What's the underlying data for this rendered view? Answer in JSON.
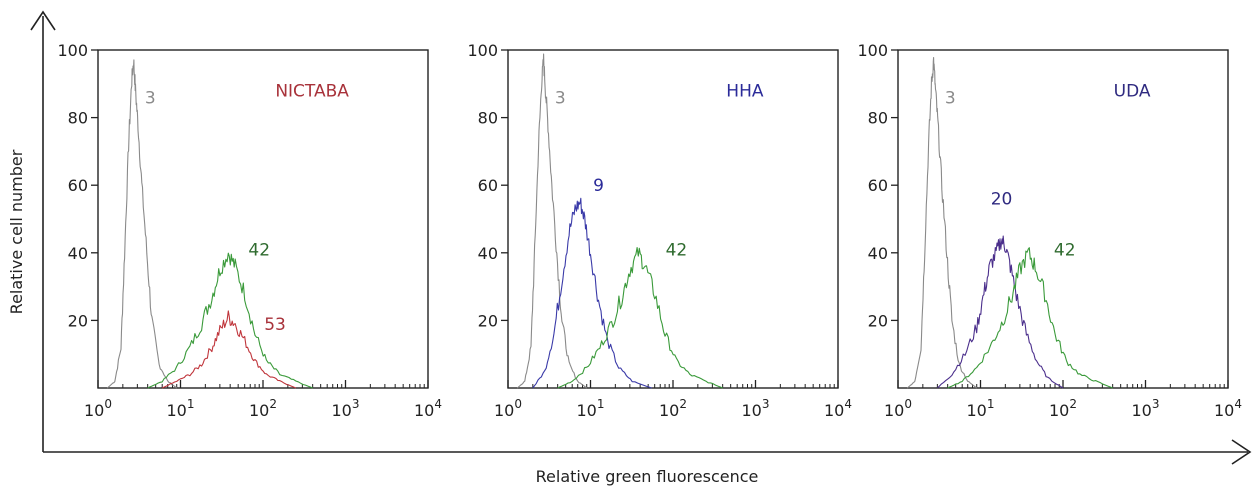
{
  "figure": {
    "ylabel": "Relative cell number",
    "xlabel": "Relative green fluorescence"
  },
  "colors": {
    "gray": "#8a8a8a",
    "green": "#3a9a3a",
    "green_label": "#2f6b2f",
    "red": "#c0363c",
    "red_label": "#a8323a",
    "blue": "#3a3aa8",
    "blue_label": "#2b2b99",
    "purple": "#4b2f8c",
    "purple_label": "#2f2a80"
  },
  "chart_data": [
    {
      "type": "line",
      "title": "NICTABA",
      "x_scale": "log",
      "xlim": [
        1,
        10000
      ],
      "ylim": [
        0,
        100
      ],
      "yticks": [
        "100",
        "80",
        "60",
        "40",
        "20"
      ],
      "xticks": [
        {
          "base": "10",
          "exp": "0"
        },
        {
          "base": "10",
          "exp": "1"
        },
        {
          "base": "10",
          "exp": "2"
        },
        {
          "base": "10",
          "exp": "3"
        },
        {
          "base": "10",
          "exp": "4"
        }
      ],
      "series": [
        {
          "name": "3",
          "color": "gray",
          "points": [
            [
              1.3,
              0
            ],
            [
              1.6,
              2
            ],
            [
              1.9,
              12
            ],
            [
              2.1,
              40
            ],
            [
              2.35,
              72
            ],
            [
              2.55,
              90
            ],
            [
              2.7,
              97
            ],
            [
              2.85,
              88
            ],
            [
              3.05,
              78
            ],
            [
              3.4,
              60
            ],
            [
              3.9,
              40
            ],
            [
              4.5,
              20
            ],
            [
              5.5,
              7
            ],
            [
              7,
              2
            ],
            [
              9,
              0
            ]
          ]
        },
        {
          "name": "42",
          "color": "green",
          "points": [
            [
              4,
              0
            ],
            [
              6,
              2
            ],
            [
              9,
              6
            ],
            [
              13,
              12
            ],
            [
              18,
              19
            ],
            [
              24,
              27
            ],
            [
              30,
              35
            ],
            [
              38,
              40
            ],
            [
              46,
              36
            ],
            [
              60,
              28
            ],
            [
              80,
              16
            ],
            [
              110,
              8
            ],
            [
              160,
              4
            ],
            [
              250,
              2
            ],
            [
              400,
              0
            ]
          ]
        },
        {
          "name": "53",
          "color": "red",
          "points": [
            [
              6,
              0
            ],
            [
              9,
              2
            ],
            [
              13,
              4
            ],
            [
              18,
              7
            ],
            [
              24,
              12
            ],
            [
              30,
              17
            ],
            [
              38,
              21
            ],
            [
              46,
              19
            ],
            [
              60,
              14
            ],
            [
              80,
              8
            ],
            [
              110,
              4
            ],
            [
              160,
              2
            ],
            [
              250,
              0
            ]
          ]
        }
      ],
      "annotations": [
        {
          "text": "3",
          "x": 4.3,
          "y": 86,
          "color": "gray"
        },
        {
          "text": "42",
          "x": 90,
          "y": 41,
          "color": "green_label"
        },
        {
          "text": "53",
          "x": 140,
          "y": 19,
          "color": "red_label"
        },
        {
          "text": "NICTABA",
          "x": 1100,
          "y": 88,
          "color": "red_label"
        }
      ]
    },
    {
      "type": "line",
      "title": "HHA",
      "x_scale": "log",
      "xlim": [
        1,
        10000
      ],
      "ylim": [
        0,
        100
      ],
      "yticks": [
        "100",
        "80",
        "60",
        "40",
        "20"
      ],
      "xticks": [
        {
          "base": "10",
          "exp": "0"
        },
        {
          "base": "10",
          "exp": "1"
        },
        {
          "base": "10",
          "exp": "2"
        },
        {
          "base": "10",
          "exp": "3"
        },
        {
          "base": "10",
          "exp": "4"
        }
      ],
      "series": [
        {
          "name": "3",
          "color": "gray",
          "points": [
            [
              1.3,
              0
            ],
            [
              1.6,
              2
            ],
            [
              1.9,
              12
            ],
            [
              2.1,
              40
            ],
            [
              2.35,
              72
            ],
            [
              2.55,
              90
            ],
            [
              2.7,
              97
            ],
            [
              2.85,
              88
            ],
            [
              3.05,
              78
            ],
            [
              3.4,
              60
            ],
            [
              3.9,
              40
            ],
            [
              4.5,
              20
            ],
            [
              5.5,
              7
            ],
            [
              7,
              2
            ],
            [
              9,
              0
            ]
          ]
        },
        {
          "name": "9",
          "color": "blue",
          "points": [
            [
              2,
              0
            ],
            [
              2.8,
              5
            ],
            [
              3.6,
              16
            ],
            [
              4.5,
              32
            ],
            [
              5.5,
              46
            ],
            [
              6.5,
              53
            ],
            [
              7.5,
              55
            ],
            [
              8.5,
              50
            ],
            [
              10,
              40
            ],
            [
              12.5,
              26
            ],
            [
              16,
              14
            ],
            [
              22,
              6
            ],
            [
              32,
              2
            ],
            [
              55,
              0
            ]
          ]
        },
        {
          "name": "42",
          "color": "green",
          "points": [
            [
              4,
              0
            ],
            [
              6,
              2
            ],
            [
              9,
              6
            ],
            [
              13,
              12
            ],
            [
              18,
              19
            ],
            [
              24,
              27
            ],
            [
              30,
              35
            ],
            [
              38,
              40
            ],
            [
              46,
              36
            ],
            [
              60,
              28
            ],
            [
              80,
              16
            ],
            [
              110,
              8
            ],
            [
              160,
              4
            ],
            [
              250,
              2
            ],
            [
              400,
              0
            ]
          ]
        }
      ],
      "annotations": [
        {
          "text": "3",
          "x": 4.3,
          "y": 86,
          "color": "gray"
        },
        {
          "text": "9",
          "x": 12.5,
          "y": 60,
          "color": "blue_label"
        },
        {
          "text": "42",
          "x": 110,
          "y": 41,
          "color": "green_label"
        },
        {
          "text": "HHA",
          "x": 1250,
          "y": 88,
          "color": "blue_label"
        }
      ]
    },
    {
      "type": "line",
      "title": "UDA",
      "x_scale": "log",
      "xlim": [
        1,
        10000
      ],
      "ylim": [
        0,
        100
      ],
      "yticks": [
        "100",
        "80",
        "60",
        "40",
        "20"
      ],
      "xticks": [
        {
          "base": "10",
          "exp": "0"
        },
        {
          "base": "10",
          "exp": "1"
        },
        {
          "base": "10",
          "exp": "2"
        },
        {
          "base": "10",
          "exp": "3"
        },
        {
          "base": "10",
          "exp": "4"
        }
      ],
      "series": [
        {
          "name": "3",
          "color": "gray",
          "points": [
            [
              1.3,
              0
            ],
            [
              1.6,
              2
            ],
            [
              1.9,
              12
            ],
            [
              2.1,
              40
            ],
            [
              2.35,
              72
            ],
            [
              2.55,
              90
            ],
            [
              2.7,
              97
            ],
            [
              2.85,
              88
            ],
            [
              3.05,
              78
            ],
            [
              3.4,
              60
            ],
            [
              3.9,
              40
            ],
            [
              4.5,
              20
            ],
            [
              5.5,
              7
            ],
            [
              7,
              2
            ],
            [
              9,
              0
            ]
          ]
        },
        {
          "name": "20",
          "color": "purple",
          "points": [
            [
              3,
              0
            ],
            [
              4.5,
              4
            ],
            [
              6.5,
              10
            ],
            [
              9,
              18
            ],
            [
              11,
              28
            ],
            [
              13,
              36
            ],
            [
              15.5,
              40
            ],
            [
              18,
              44
            ],
            [
              20,
              42
            ],
            [
              23,
              36
            ],
            [
              28,
              26
            ],
            [
              36,
              16
            ],
            [
              48,
              8
            ],
            [
              65,
              3
            ],
            [
              100,
              0
            ]
          ]
        },
        {
          "name": "42",
          "color": "green",
          "points": [
            [
              4,
              0
            ],
            [
              6,
              2
            ],
            [
              9,
              6
            ],
            [
              13,
              12
            ],
            [
              18,
              19
            ],
            [
              24,
              27
            ],
            [
              30,
              35
            ],
            [
              38,
              40
            ],
            [
              46,
              36
            ],
            [
              60,
              28
            ],
            [
              80,
              16
            ],
            [
              110,
              8
            ],
            [
              160,
              4
            ],
            [
              250,
              2
            ],
            [
              400,
              0
            ]
          ]
        }
      ],
      "annotations": [
        {
          "text": "3",
          "x": 4.3,
          "y": 86,
          "color": "gray"
        },
        {
          "text": "20",
          "x": 18,
          "y": 56,
          "color": "purple_label"
        },
        {
          "text": "42",
          "x": 105,
          "y": 41,
          "color": "green_label"
        },
        {
          "text": "UDA",
          "x": 1150,
          "y": 88,
          "color": "purple_label"
        }
      ]
    }
  ]
}
